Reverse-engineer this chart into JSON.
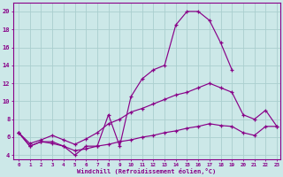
{
  "background_color": "#cce8e8",
  "line_color": "#880088",
  "grid_color": "#aacece",
  "xlabel": "Windchill (Refroidissement éolien,°C)",
  "xlim_min": -0.5,
  "xlim_max": 23.3,
  "ylim_min": 3.5,
  "ylim_max": 21.0,
  "yticks": [
    4,
    6,
    8,
    10,
    12,
    14,
    16,
    18,
    20
  ],
  "xticks": [
    0,
    1,
    2,
    3,
    4,
    5,
    6,
    7,
    8,
    9,
    10,
    11,
    12,
    13,
    14,
    15,
    16,
    17,
    18,
    19,
    20,
    21,
    22,
    23
  ],
  "line1_x": [
    0,
    1,
    2,
    3,
    4,
    5,
    6,
    7,
    8,
    9,
    10,
    11,
    12,
    13,
    14,
    15,
    16,
    17,
    18,
    19
  ],
  "line1_y": [
    6.5,
    5.0,
    5.5,
    5.5,
    5.0,
    4.0,
    5.0,
    5.0,
    8.5,
    5.0,
    10.5,
    12.5,
    13.5,
    14.0,
    18.5,
    20.0,
    20.0,
    19.0,
    16.5,
    13.5
  ],
  "line2_x": [
    0,
    1,
    2,
    3,
    4,
    5,
    6,
    7,
    8,
    9,
    10,
    11,
    12,
    13,
    14,
    15,
    16,
    17,
    18,
    19,
    20,
    21,
    22,
    23
  ],
  "line2_y": [
    6.5,
    5.3,
    5.7,
    6.2,
    5.7,
    5.2,
    5.8,
    6.5,
    7.5,
    8.0,
    8.8,
    9.2,
    9.7,
    10.2,
    10.7,
    11.0,
    11.5,
    12.0,
    11.5,
    11.0,
    8.5,
    8.0,
    9.0,
    7.2
  ],
  "line3_x": [
    0,
    1,
    2,
    3,
    4,
    5,
    6,
    7,
    8,
    9,
    10,
    11,
    12,
    13,
    14,
    15,
    16,
    17,
    18,
    19,
    20,
    21,
    22,
    23
  ],
  "line3_y": [
    6.5,
    5.0,
    5.5,
    5.3,
    5.0,
    4.5,
    4.7,
    5.0,
    5.2,
    5.5,
    5.7,
    6.0,
    6.2,
    6.5,
    6.7,
    7.0,
    7.2,
    7.5,
    7.3,
    7.2,
    6.5,
    6.2,
    7.2,
    7.2
  ]
}
